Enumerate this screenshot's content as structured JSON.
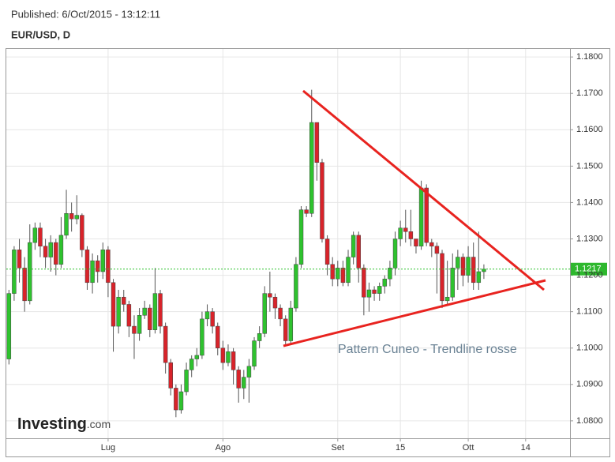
{
  "header": {
    "published": "Published: 6/Oct/2015 - 13:12:11",
    "symbol": "EUR/USD, D",
    "logo": "Investing",
    "logo_suffix": ".com"
  },
  "chart_data": {
    "type": "candlestick",
    "annotation": "Pattern Cuneo - Trendline rosse",
    "up_color": "#2ec22e",
    "down_color": "#d8232a",
    "grid": true,
    "xlim": [
      -0.5,
      107.5
    ],
    "xticks": [
      {
        "value": 19,
        "label": "Lug"
      },
      {
        "value": 41,
        "label": "Ago"
      },
      {
        "value": 63,
        "label": "Set"
      },
      {
        "value": 75,
        "label": "15"
      },
      {
        "value": 88,
        "label": "Ott"
      },
      {
        "value": 99,
        "label": "14"
      }
    ],
    "ylim": [
      1.0752,
      1.1822
    ],
    "yticks": [
      {
        "value": 1.08,
        "label": "1.0800"
      },
      {
        "value": 1.09,
        "label": "1.0900"
      },
      {
        "value": 1.1,
        "label": "1.1000"
      },
      {
        "value": 1.11,
        "label": "1.1100"
      },
      {
        "value": 1.12,
        "label": "1.1200"
      },
      {
        "value": 1.13,
        "label": "1.1300"
      },
      {
        "value": 1.14,
        "label": "1.1400"
      },
      {
        "value": 1.15,
        "label": "1.1500"
      },
      {
        "value": 1.16,
        "label": "1.1600"
      },
      {
        "value": 1.17,
        "label": "1.1700"
      },
      {
        "value": 1.18,
        "label": "1.1800"
      }
    ],
    "open": [
      1.097,
      1.115,
      1.127,
      1.122,
      1.113,
      1.129,
      1.133,
      1.128,
      1.125,
      1.129,
      1.123,
      1.131,
      1.137,
      1.1355,
      1.1365,
      1.127,
      1.118,
      1.124,
      1.121,
      1.127,
      1.118,
      1.106,
      1.114,
      1.112,
      1.106,
      1.104,
      1.109,
      1.111,
      1.105,
      1.115,
      1.106,
      1.096,
      1.089,
      1.083,
      1.088,
      1.094,
      1.097,
      1.098,
      1.108,
      1.11,
      1.106,
      1.1,
      1.096,
      1.099,
      1.094,
      1.089,
      1.092,
      1.095,
      1.102,
      1.104,
      1.115,
      1.114,
      1.111,
      1.108,
      1.102,
      1.111,
      1.123,
      1.138,
      1.137,
      1.162,
      1.151,
      1.13,
      1.123,
      1.119,
      1.122,
      1.118,
      1.125,
      1.131,
      1.122,
      1.114,
      1.116,
      1.115,
      1.117,
      1.119,
      1.122,
      1.13,
      1.133,
      1.132,
      1.13,
      1.128,
      1.144,
      1.129,
      1.128,
      1.126,
      1.113,
      1.114,
      1.122,
      1.125,
      1.12,
      1.125,
      1.118,
      1.121
    ],
    "high": [
      1.116,
      1.128,
      1.13,
      1.125,
      1.134,
      1.1345,
      1.1345,
      1.13,
      1.131,
      1.13,
      1.136,
      1.1435,
      1.14,
      1.142,
      1.137,
      1.128,
      1.126,
      1.1255,
      1.129,
      1.128,
      1.119,
      1.116,
      1.116,
      1.113,
      1.109,
      1.111,
      1.113,
      1.112,
      1.122,
      1.116,
      1.107,
      1.097,
      1.09,
      1.09,
      1.096,
      1.098,
      1.1,
      1.11,
      1.112,
      1.111,
      1.107,
      1.102,
      1.101,
      1.1,
      1.095,
      1.094,
      1.097,
      1.103,
      1.106,
      1.117,
      1.121,
      1.115,
      1.112,
      1.109,
      1.113,
      1.125,
      1.139,
      1.139,
      1.171,
      1.162,
      1.152,
      1.131,
      1.125,
      1.124,
      1.124,
      1.127,
      1.132,
      1.132,
      1.123,
      1.118,
      1.117,
      1.118,
      1.12,
      1.124,
      1.132,
      1.135,
      1.138,
      1.138,
      1.13,
      1.146,
      1.145,
      1.13,
      1.129,
      1.127,
      1.124,
      1.126,
      1.127,
      1.126,
      1.128,
      1.129,
      1.132,
      1.123
    ],
    "low": [
      1.0955,
      1.113,
      1.118,
      1.11,
      1.112,
      1.127,
      1.125,
      1.122,
      1.121,
      1.12,
      1.122,
      1.13,
      1.132,
      1.134,
      1.125,
      1.116,
      1.115,
      1.118,
      1.119,
      1.114,
      1.099,
      1.104,
      1.11,
      1.103,
      1.097,
      1.102,
      1.108,
      1.103,
      1.104,
      1.104,
      1.093,
      1.087,
      1.081,
      1.082,
      1.087,
      1.092,
      1.095,
      1.097,
      1.106,
      1.104,
      1.098,
      1.094,
      1.095,
      1.09,
      1.085,
      1.086,
      1.085,
      1.094,
      1.1,
      1.103,
      1.11,
      1.108,
      1.106,
      1.101,
      1.101,
      1.11,
      1.122,
      1.136,
      1.136,
      1.146,
      1.129,
      1.12,
      1.117,
      1.117,
      1.117,
      1.117,
      1.123,
      1.118,
      1.109,
      1.11,
      1.113,
      1.113,
      1.115,
      1.117,
      1.12,
      1.128,
      1.129,
      1.128,
      1.126,
      1.127,
      1.128,
      1.125,
      1.115,
      1.111,
      1.112,
      1.113,
      1.116,
      1.117,
      1.118,
      1.116,
      1.116,
      1.119
    ],
    "close": [
      1.115,
      1.127,
      1.122,
      1.113,
      1.129,
      1.133,
      1.128,
      1.125,
      1.129,
      1.123,
      1.131,
      1.137,
      1.1355,
      1.1365,
      1.127,
      1.118,
      1.124,
      1.121,
      1.127,
      1.118,
      1.106,
      1.114,
      1.112,
      1.106,
      1.104,
      1.109,
      1.111,
      1.105,
      1.115,
      1.106,
      1.096,
      1.089,
      1.083,
      1.088,
      1.094,
      1.097,
      1.098,
      1.108,
      1.11,
      1.106,
      1.1,
      1.096,
      1.099,
      1.094,
      1.089,
      1.092,
      1.095,
      1.102,
      1.104,
      1.115,
      1.114,
      1.111,
      1.108,
      1.102,
      1.111,
      1.123,
      1.138,
      1.137,
      1.162,
      1.151,
      1.13,
      1.123,
      1.119,
      1.122,
      1.118,
      1.125,
      1.131,
      1.122,
      1.114,
      1.116,
      1.115,
      1.117,
      1.119,
      1.122,
      1.13,
      1.133,
      1.132,
      1.13,
      1.128,
      1.144,
      1.129,
      1.128,
      1.126,
      1.113,
      1.114,
      1.122,
      1.125,
      1.12,
      1.125,
      1.118,
      1.121,
      1.1217
    ]
  }
}
